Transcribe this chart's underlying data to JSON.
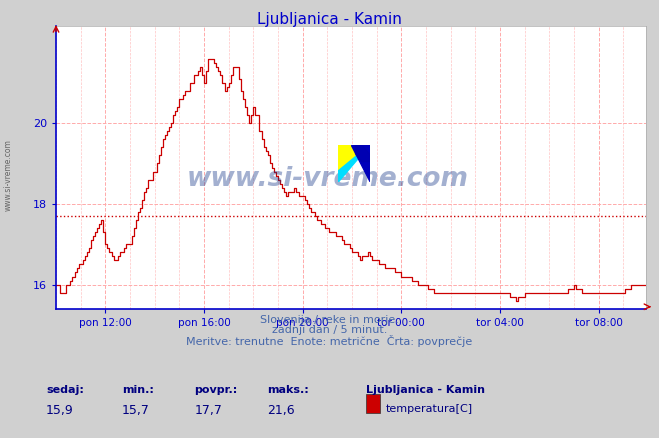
{
  "title": "Ljubljanica - Kamin",
  "bg_color": "#d0d0d0",
  "plot_bg_color": "#ffffff",
  "grid_color": "#ffaaaa",
  "line_color": "#cc0000",
  "avg_line_color": "#cc0000",
  "avg_value": 17.7,
  "y_min": 15.4,
  "y_max": 22.4,
  "yticks": [
    16,
    18,
    20
  ],
  "xlabel_ticks": [
    "pon 12:00",
    "pon 16:00",
    "pon 20:00",
    "tor 00:00",
    "tor 04:00",
    "tor 08:00"
  ],
  "tick_positions": [
    24,
    72,
    120,
    168,
    216,
    264
  ],
  "n_points": 288,
  "footer_lines": [
    "Slovenija / reke in morje.",
    "zadnji dan / 5 minut.",
    "Meritve: trenutne  Enote: metrične  Črta: povprečje"
  ],
  "stats_labels": [
    "sedaj:",
    "min.:",
    "povpr.:",
    "maks.:"
  ],
  "stats_values": [
    "15,9",
    "15,7",
    "17,7",
    "21,6"
  ],
  "legend_title": "Ljubljanica - Kamin",
  "legend_label": "temperatura[C]",
  "legend_color": "#cc0000",
  "watermark": "www.si-vreme.com",
  "title_color": "#0000cc",
  "axis_label_color": "#0000cc",
  "spine_color": "#0000cc",
  "footer_color": "#4466aa",
  "stats_label_color": "#000080",
  "stats_value_color": "#000080",
  "key_points": [
    [
      0,
      16.05
    ],
    [
      3,
      15.75
    ],
    [
      6,
      16.05
    ],
    [
      10,
      16.4
    ],
    [
      15,
      16.75
    ],
    [
      18,
      17.25
    ],
    [
      22,
      17.55
    ],
    [
      24,
      17.05
    ],
    [
      28,
      16.55
    ],
    [
      32,
      16.85
    ],
    [
      36,
      17.05
    ],
    [
      40,
      17.75
    ],
    [
      44,
      18.45
    ],
    [
      48,
      18.85
    ],
    [
      52,
      19.55
    ],
    [
      56,
      20.05
    ],
    [
      60,
      20.55
    ],
    [
      64,
      20.85
    ],
    [
      67,
      21.15
    ],
    [
      70,
      21.35
    ],
    [
      72,
      21.05
    ],
    [
      74,
      21.55
    ],
    [
      76,
      21.55
    ],
    [
      78,
      21.45
    ],
    [
      80,
      21.15
    ],
    [
      82,
      20.75
    ],
    [
      84,
      21.05
    ],
    [
      86,
      21.35
    ],
    [
      88,
      21.35
    ],
    [
      90,
      20.85
    ],
    [
      92,
      20.35
    ],
    [
      94,
      20.05
    ],
    [
      96,
      20.35
    ],
    [
      98,
      20.15
    ],
    [
      100,
      19.55
    ],
    [
      104,
      19.05
    ],
    [
      108,
      18.55
    ],
    [
      112,
      18.25
    ],
    [
      116,
      18.35
    ],
    [
      120,
      18.15
    ],
    [
      124,
      17.85
    ],
    [
      128,
      17.55
    ],
    [
      132,
      17.35
    ],
    [
      136,
      17.25
    ],
    [
      140,
      17.05
    ],
    [
      144,
      16.85
    ],
    [
      148,
      16.65
    ],
    [
      152,
      16.75
    ],
    [
      156,
      16.55
    ],
    [
      160,
      16.45
    ],
    [
      164,
      16.35
    ],
    [
      168,
      16.25
    ],
    [
      172,
      16.15
    ],
    [
      176,
      16.05
    ],
    [
      180,
      15.95
    ],
    [
      184,
      15.85
    ],
    [
      188,
      15.75
    ],
    [
      192,
      15.85
    ],
    [
      196,
      15.75
    ],
    [
      200,
      15.75
    ],
    [
      204,
      15.85
    ],
    [
      208,
      15.75
    ],
    [
      212,
      15.75
    ],
    [
      216,
      15.85
    ],
    [
      220,
      15.75
    ],
    [
      224,
      15.65
    ],
    [
      228,
      15.75
    ],
    [
      232,
      15.85
    ],
    [
      236,
      15.75
    ],
    [
      240,
      15.75
    ],
    [
      244,
      15.85
    ],
    [
      248,
      15.85
    ],
    [
      252,
      15.95
    ],
    [
      256,
      15.85
    ],
    [
      260,
      15.85
    ],
    [
      264,
      15.75
    ],
    [
      268,
      15.75
    ],
    [
      272,
      15.85
    ],
    [
      276,
      15.85
    ],
    [
      280,
      15.95
    ],
    [
      284,
      15.95
    ],
    [
      287,
      15.95
    ]
  ]
}
